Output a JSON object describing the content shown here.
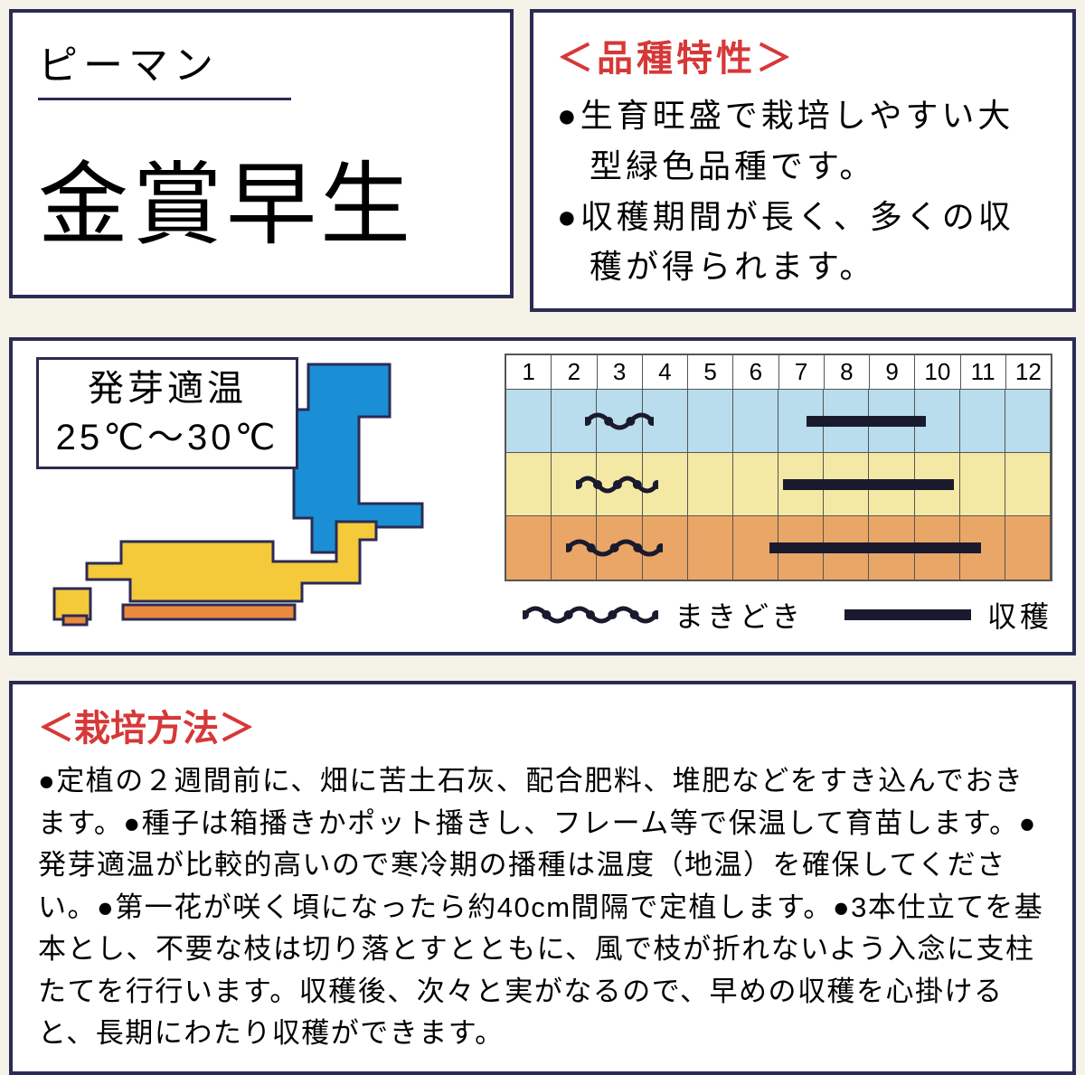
{
  "name_box": {
    "subtitle": "ピーマン",
    "main_name": "金賞早生"
  },
  "characteristics": {
    "heading": "＜品種特性＞",
    "bullets": [
      "●生育旺盛で栽培しやすい大型緑色品種です。",
      "●収穫期間が長く、多くの収穫が得られます。"
    ]
  },
  "germination": {
    "label": "発芽適温",
    "range": "25℃～30℃"
  },
  "map_colors": {
    "cold": "#1a8fd6",
    "temperate": "#f4c93a",
    "warm": "#e98a3d",
    "outline": "#2b2b55"
  },
  "calendar": {
    "months": [
      "1",
      "2",
      "3",
      "4",
      "5",
      "6",
      "7",
      "8",
      "9",
      "10",
      "11",
      "12"
    ],
    "rows": [
      {
        "color": "#b9ddec",
        "sow_start": 2.7,
        "sow_end": 4.2,
        "harvest_start": 7.5,
        "harvest_end": 10.1
      },
      {
        "color": "#f4e9a4",
        "sow_start": 2.5,
        "sow_end": 4.3,
        "harvest_start": 7.0,
        "harvest_end": 10.7
      },
      {
        "color": "#eaa667",
        "sow_start": 2.3,
        "sow_end": 4.4,
        "harvest_start": 6.7,
        "harvest_end": 11.3
      }
    ]
  },
  "legend": {
    "sow_label": "まきどき",
    "harvest_label": "収穫",
    "mark_color": "#1a1a2e"
  },
  "cultivation": {
    "heading": "＜栽培方法＞",
    "text": "●定植の２週間前に、畑に苦土石灰、配合肥料、堆肥などをすき込んでおきます。●種子は箱播きかポット播きし、フレーム等で保温して育苗します。●発芽適温が比較的高いので寒冷期の播種は温度（地温）を確保してください。●第一花が咲く頃になったら約40cm間隔で定植します。●3本仕立てを基本とし、不要な枝は切り落とすとともに、風で枝が折れないよう入念に支柱たてを行行います。収穫後、次々と実がなるので、早めの収穫を心掛けると、長期にわたり収穫ができます。"
  },
  "style": {
    "border_color": "#2b2b55",
    "heading_color": "#d63838",
    "background": "#f5f3e8"
  }
}
